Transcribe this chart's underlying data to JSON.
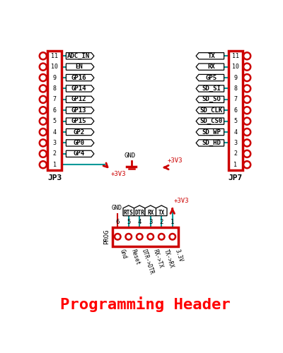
{
  "title": "Programming Header",
  "title_color": "#FF0000",
  "title_fontsize": 16,
  "bg_color": "#FFFFFF",
  "connector_color": "#CC0000",
  "wire_color": "#009999",
  "text_color": "#000000",
  "arrow_color": "#CC0000",
  "jp3_label": "JP3",
  "jp7_label": "JP7",
  "prog_label": "PROG",
  "jp3_pins": [
    "11",
    "10",
    "9",
    "8",
    "7",
    "6",
    "5",
    "4",
    "3",
    "2",
    "1"
  ],
  "jp3_signals": [
    "ADC_IN",
    "EN",
    "GP16",
    "GP14",
    "GP12",
    "GP13",
    "GP15",
    "GP2",
    "GP0",
    "GP4",
    ""
  ],
  "jp3_wired": [
    true,
    true,
    true,
    true,
    true,
    true,
    true,
    true,
    true,
    true,
    false
  ],
  "jp7_pins": [
    "11",
    "10",
    "9",
    "8",
    "7",
    "6",
    "5",
    "4",
    "3",
    "2",
    "1"
  ],
  "jp7_signals": [
    "TX",
    "RX",
    "GP5",
    "SD_SI",
    "SD_SO",
    "SD_CLK",
    "SD_CS0",
    "SD_WP",
    "SD_HD",
    "",
    ""
  ],
  "jp7_wired": [
    true,
    true,
    true,
    true,
    true,
    true,
    true,
    true,
    true,
    false,
    false
  ],
  "prog_pins": [
    "6",
    "5",
    "4",
    "3",
    "2",
    "1"
  ],
  "prog_labels": [
    "Gnd",
    "Reset",
    "DTR->DTR",
    "RX->TX",
    "TX->RX",
    "3.3V"
  ],
  "prog_sigs": [
    "RTS",
    "DTR",
    "RX",
    "TX"
  ],
  "prog_sig_pins": [
    5,
    4,
    3,
    2
  ]
}
